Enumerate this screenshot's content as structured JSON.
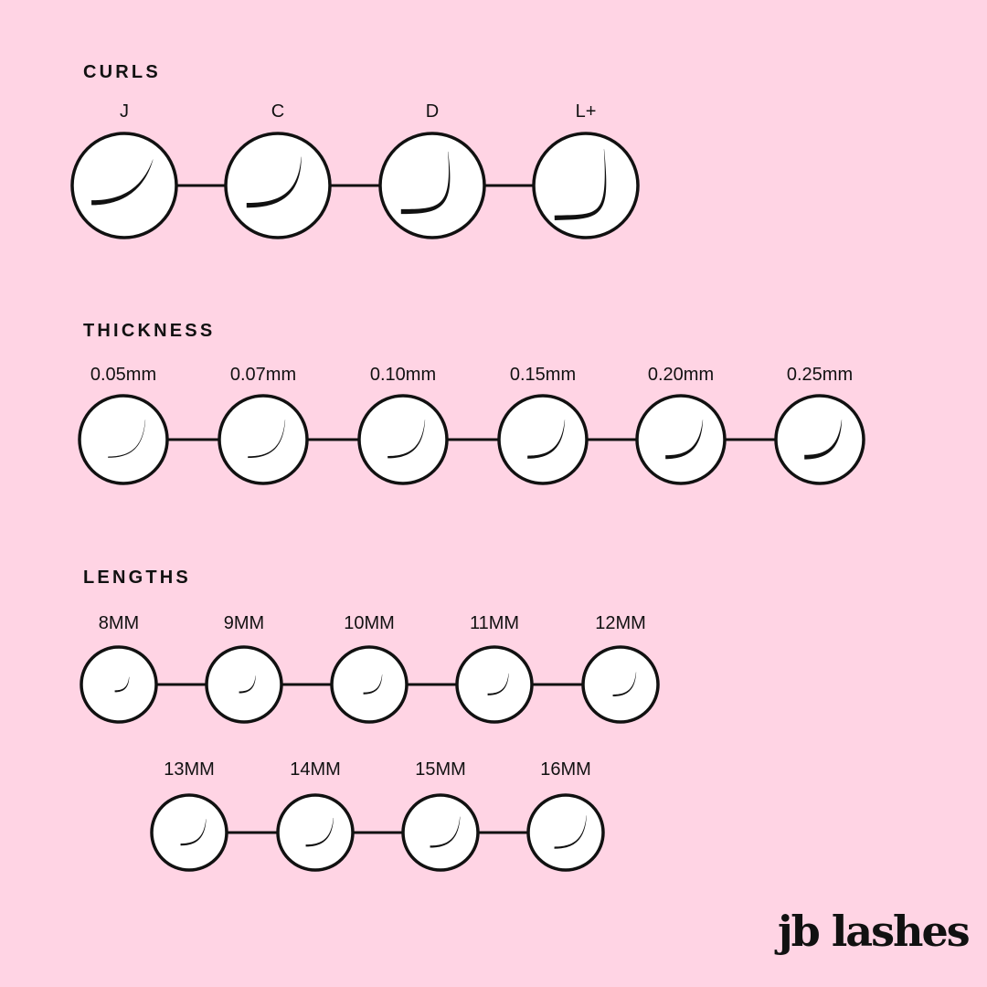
{
  "sections": {
    "curls": {
      "title": "CURLS",
      "items": [
        "J",
        "C",
        "D",
        "L+"
      ]
    },
    "thickness": {
      "title": "THICKNESS",
      "items": [
        "0.05mm",
        "0.07mm",
        "0.10mm",
        "0.15mm",
        "0.20mm",
        "0.25mm"
      ]
    },
    "lengths": {
      "title": "LENGTHS",
      "items": [
        "8MM",
        "9MM",
        "10MM",
        "11MM",
        "12MM",
        "13MM",
        "14MM",
        "15MM",
        "16MM"
      ]
    }
  },
  "brand": {
    "logo_text": "jb lashes"
  },
  "colors": {
    "background": "#ffd4e4",
    "circle_fill": "#ffffff",
    "ink": "#111111"
  }
}
